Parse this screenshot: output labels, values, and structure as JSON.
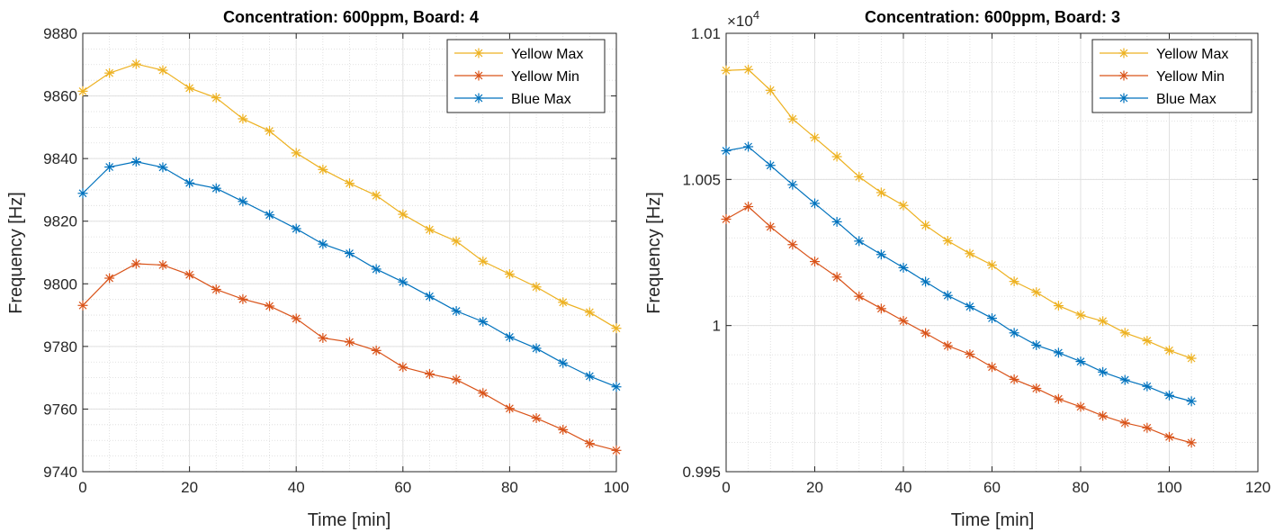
{
  "chart_data": [
    {
      "type": "line",
      "title": "Concentration: 600ppm, Board: 4",
      "xlabel": "Time [min]",
      "ylabel": "Frequency [Hz]",
      "xlim": [
        0,
        100
      ],
      "ylim": [
        9740,
        9880
      ],
      "xticks": [
        "0",
        "20",
        "40",
        "60",
        "80",
        "100"
      ],
      "yticks": [
        "9740",
        "9760",
        "9780",
        "9800",
        "9820",
        "9840",
        "9860",
        "9880"
      ],
      "grid": true,
      "minor_grid": true,
      "legend_position": "top-right",
      "x": [
        0,
        5,
        10,
        15,
        20,
        25,
        30,
        35,
        40,
        45,
        50,
        55,
        60,
        65,
        70,
        75,
        80,
        85,
        90,
        95,
        100
      ],
      "series": [
        {
          "name": "Yellow Max",
          "color": "#EDB120",
          "marker": "asterisk",
          "values": [
            9861.5,
            9867.3,
            9870.2,
            9868.2,
            9862.5,
            9859.4,
            9852.7,
            9848.8,
            9841.8,
            9836.5,
            9832.1,
            9828.2,
            9822.2,
            9817.3,
            9813.6,
            9807.2,
            9803.1,
            9799.0,
            9794.1,
            9790.9,
            9785.8
          ]
        },
        {
          "name": "Yellow Min",
          "color": "#D95319",
          "marker": "asterisk",
          "values": [
            9793.1,
            9801.8,
            9806.4,
            9806.0,
            9802.9,
            9798.2,
            9795.1,
            9792.9,
            9788.9,
            9782.7,
            9781.4,
            9778.7,
            9773.4,
            9771.2,
            9769.4,
            9765.1,
            9760.2,
            9757.1,
            9753.4,
            9749.0,
            9746.8
          ]
        },
        {
          "name": "Blue Max",
          "color": "#0072BD",
          "marker": "asterisk",
          "values": [
            9828.9,
            9837.3,
            9839.0,
            9837.2,
            9832.2,
            9830.5,
            9826.3,
            9822.0,
            9817.6,
            9812.7,
            9809.7,
            9804.7,
            9800.6,
            9796.0,
            9791.3,
            9787.9,
            9783.0,
            9779.4,
            9774.7,
            9770.5,
            9767.1
          ]
        }
      ]
    },
    {
      "type": "line",
      "title": "Concentration: 600ppm, Board: 3",
      "xlabel": "Time [min]",
      "ylabel": "Frequency [Hz]",
      "exponent_label": "×10",
      "exponent_power": "4",
      "xlim": [
        0,
        120
      ],
      "ylim": [
        9950,
        10100
      ],
      "xticks": [
        "0",
        "20",
        "40",
        "60",
        "80",
        "100",
        "120"
      ],
      "yticks": [
        "0.995",
        "1",
        "1.005",
        "1.01"
      ],
      "grid": true,
      "minor_grid": true,
      "legend_position": "top-right",
      "x": [
        0,
        5,
        10,
        15,
        20,
        25,
        30,
        35,
        40,
        45,
        50,
        55,
        60,
        65,
        70,
        75,
        80,
        85,
        90,
        95,
        100,
        105
      ],
      "series": [
        {
          "name": "Yellow Max",
          "color": "#EDB120",
          "marker": "asterisk",
          "values": [
            10087.3,
            10087.6,
            10080.5,
            10070.7,
            10064.3,
            10057.8,
            10050.9,
            10045.5,
            10041.1,
            10034.3,
            10029.0,
            10024.6,
            10020.7,
            10015.1,
            10011.4,
            10006.8,
            10003.6,
            10001.5,
            9997.5,
            9994.8,
            9991.5,
            9988.8
          ]
        },
        {
          "name": "Yellow Min",
          "color": "#D95319",
          "marker": "asterisk",
          "values": [
            10036.4,
            10040.7,
            10033.8,
            10027.7,
            10021.9,
            10016.6,
            10010.0,
            10005.8,
            10001.6,
            9997.4,
            9993.1,
            9990.2,
            9985.8,
            9981.6,
            9978.5,
            9974.9,
            9972.2,
            9969.1,
            9966.7,
            9965.0,
            9961.9,
            9959.9
          ]
        },
        {
          "name": "Blue Max",
          "color": "#0072BD",
          "marker": "asterisk",
          "values": [
            10059.8,
            10061.2,
            10054.8,
            10048.2,
            10041.8,
            10035.5,
            10028.9,
            10024.3,
            10019.8,
            10015.0,
            10010.3,
            10006.5,
            10002.5,
            9997.5,
            9993.3,
            9990.7,
            9987.7,
            9984.1,
            9981.4,
            9979.2,
            9976.1,
            9974.1
          ]
        }
      ]
    }
  ]
}
